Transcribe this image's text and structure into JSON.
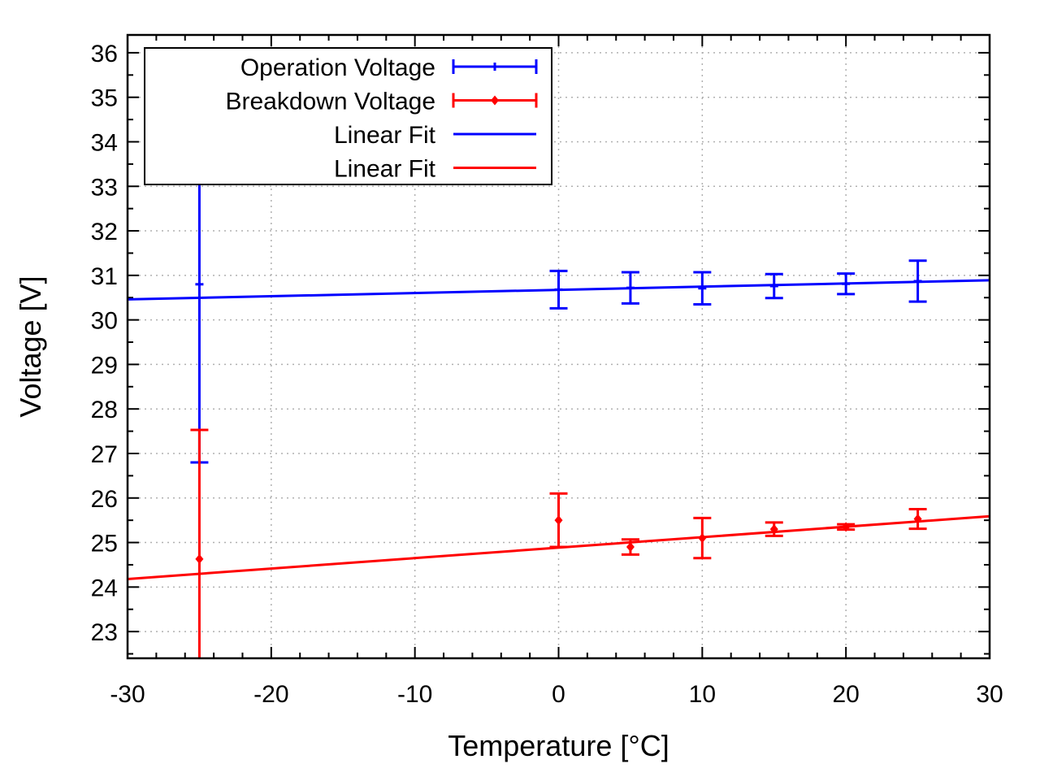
{
  "chart_data": {
    "type": "scatter",
    "xlabel": "Temperature [°C]",
    "ylabel": "Voltage [V]",
    "xlim": [
      -30,
      30
    ],
    "ylim": [
      22.4,
      36.4
    ],
    "xticks": [
      -30,
      -20,
      -10,
      0,
      10,
      20,
      30
    ],
    "yticks": [
      23,
      24,
      25,
      26,
      27,
      28,
      29,
      30,
      31,
      32,
      33,
      34,
      35,
      36
    ],
    "grid": true,
    "legend_position": "top-left",
    "series": [
      {
        "name": "Operation Voltage",
        "kind": "errorbar",
        "color": "#0000ff",
        "marker": "dash",
        "points": [
          {
            "x": -25,
            "y": 30.8,
            "err": 4.0
          },
          {
            "x": 0,
            "y": 30.68,
            "err": 0.42
          },
          {
            "x": 5,
            "y": 30.72,
            "err": 0.35
          },
          {
            "x": 10,
            "y": 30.71,
            "err": 0.36
          },
          {
            "x": 15,
            "y": 30.76,
            "err": 0.27
          },
          {
            "x": 20,
            "y": 30.81,
            "err": 0.23
          },
          {
            "x": 25,
            "y": 30.87,
            "err": 0.46
          }
        ]
      },
      {
        "name": "Breakdown Voltage",
        "kind": "errorbar",
        "color": "#ff0000",
        "marker": "diamond",
        "points": [
          {
            "x": -25,
            "y": 24.63,
            "err": 2.9
          },
          {
            "x": 0,
            "y": 25.5,
            "err": 0.6
          },
          {
            "x": 5,
            "y": 24.9,
            "err": 0.17
          },
          {
            "x": 10,
            "y": 25.1,
            "err": 0.45
          },
          {
            "x": 15,
            "y": 25.3,
            "err": 0.15
          },
          {
            "x": 20,
            "y": 25.35,
            "err": 0.06
          },
          {
            "x": 25,
            "y": 25.53,
            "err": 0.22
          }
        ]
      },
      {
        "name": "Linear Fit",
        "kind": "line",
        "color": "#0000ff",
        "x": [
          -30,
          30
        ],
        "y": [
          30.46,
          30.89
        ]
      },
      {
        "name": "Linear Fit",
        "kind": "line",
        "color": "#ff0000",
        "x": [
          -30,
          30
        ],
        "y": [
          24.18,
          25.59
        ]
      }
    ]
  }
}
